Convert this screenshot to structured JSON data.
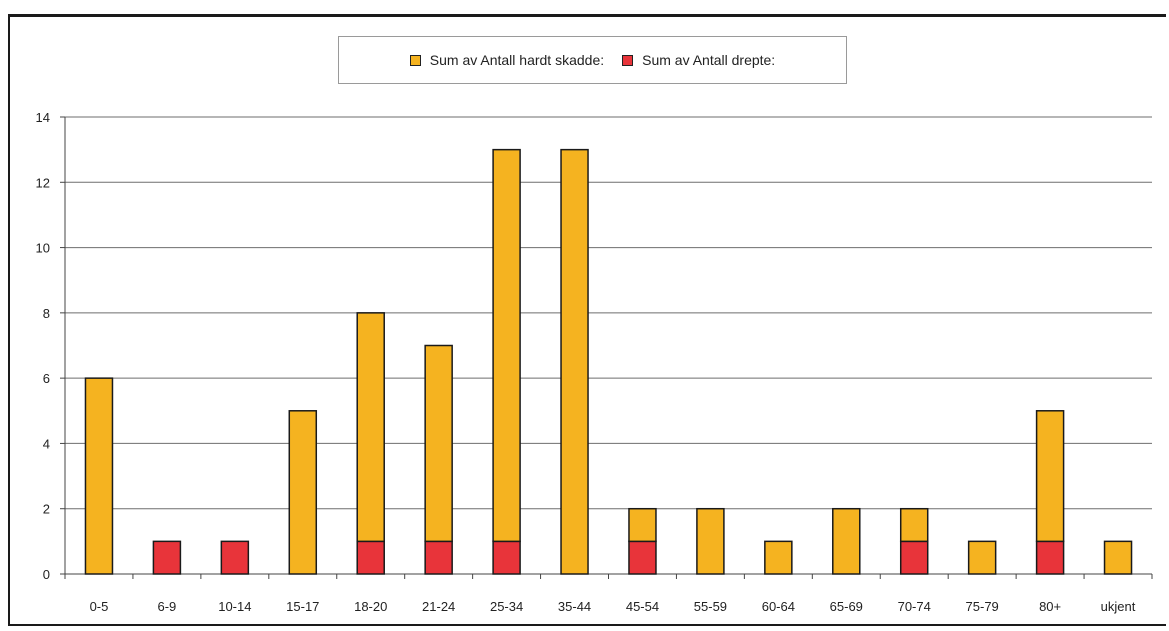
{
  "chart_data": {
    "type": "bar",
    "stacked": true,
    "categories": [
      "0-5",
      "6-9",
      "10-14",
      "15-17",
      "18-20",
      "21-24",
      "25-34",
      "35-44",
      "45-54",
      "55-59",
      "60-64",
      "65-69",
      "70-74",
      "75-79",
      "80+",
      "ukjent"
    ],
    "series": [
      {
        "name": "Sum av Antall drepte",
        "color": "#e8343a",
        "values": [
          0,
          1,
          1,
          0,
          1,
          1,
          1,
          0,
          1,
          0,
          0,
          0,
          1,
          0,
          1,
          0
        ]
      },
      {
        "name": "Sum av Antall hardt skadde",
        "color": "#f5b320",
        "values": [
          6,
          0,
          0,
          5,
          7,
          6,
          12,
          13,
          1,
          2,
          1,
          2,
          1,
          1,
          4,
          1
        ]
      }
    ],
    "legend_labels": [
      "Sum av Antall hardt skadde:",
      "Sum av Antall drepte:"
    ],
    "legend_position": "top",
    "ylim": [
      0,
      14
    ],
    "yticks": [
      0,
      2,
      4,
      6,
      8,
      10,
      12,
      14
    ],
    "grid": true
  }
}
